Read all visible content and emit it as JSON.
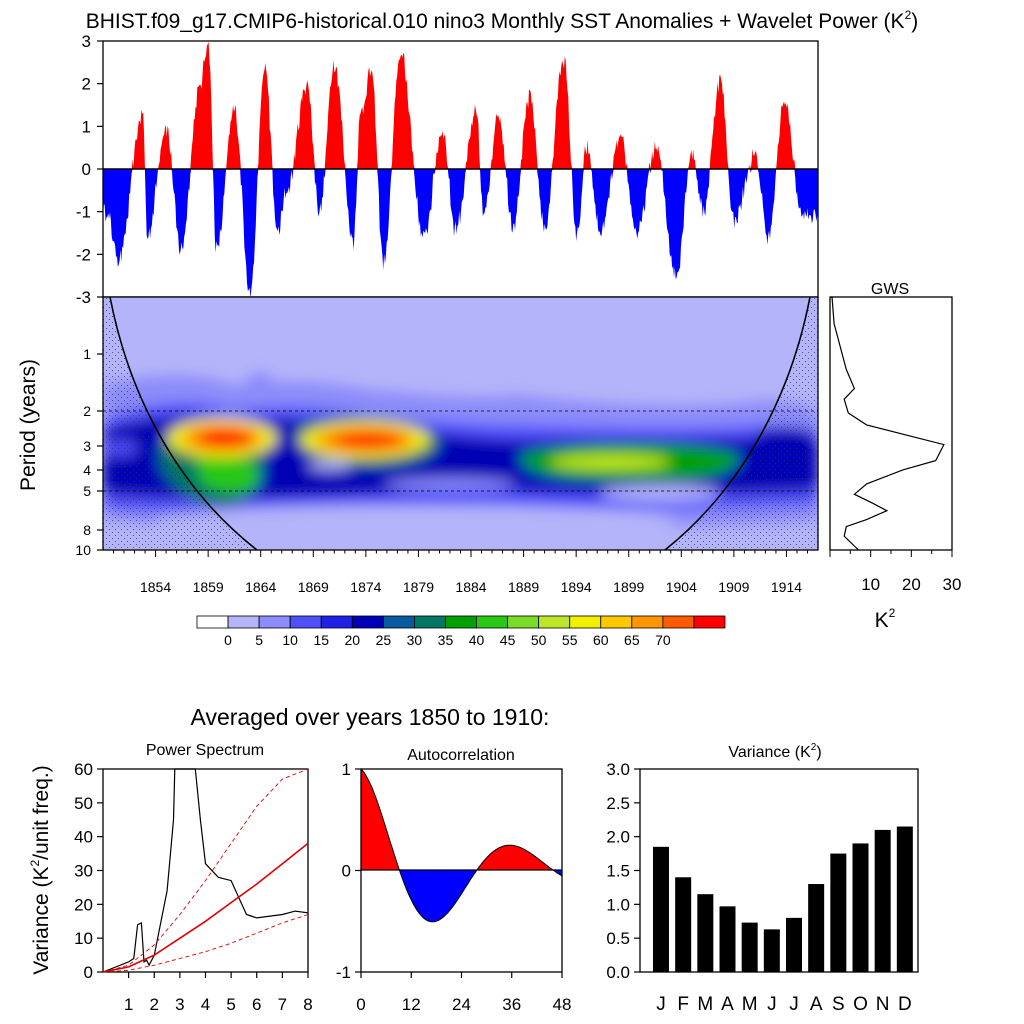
{
  "header": {
    "title": "BHIST.f09_g17.CMIP6-historical.010 nino3 Monthly SST Anomalies + Wavelet Power (K",
    "title_sup": "2",
    "title_end": ")"
  },
  "colors": {
    "positive": "#ff0000",
    "negative": "#0000ff",
    "coi_line": "#000000",
    "background": "#ffffff"
  },
  "chart_data": [
    {
      "id": "timeseries",
      "type": "area",
      "title": "Monthly SST Anomalies",
      "xlim": [
        1849,
        1917
      ],
      "ylim": [
        -3,
        3
      ],
      "yticks": [
        "3",
        "2",
        "1",
        "0",
        "-1",
        "-2",
        "-3"
      ],
      "peaks_x": [
        1849.3,
        1850.5,
        1852.8,
        1853.2,
        1855.0,
        1856.4,
        1858.2,
        1859.0,
        1859.8,
        1861.5,
        1863.0,
        1864.4,
        1865.6,
        1866.5,
        1868.4,
        1869.6,
        1871.0,
        1872.8,
        1873.5,
        1874.5,
        1875.7,
        1877.3,
        1879.5,
        1881.3,
        1882.5,
        1884.5,
        1885.2,
        1886.6,
        1888.0,
        1889.6,
        1891.0,
        1892.8,
        1894.1,
        1895.0,
        1896.3,
        1898.2,
        1899.8,
        1901.6,
        1903.5,
        1905.0,
        1906.1,
        1907.7,
        1909.0,
        1911.0,
        1912.3,
        1913.8,
        1915.5
      ],
      "peaks_y": [
        -1.0,
        -2.1,
        1.3,
        -1.6,
        1.0,
        -1.9,
        1.9,
        3.0,
        -1.9,
        1.4,
        -2.9,
        2.4,
        -1.5,
        -0.5,
        2.0,
        -1.0,
        2.5,
        -1.7,
        1.3,
        2.3,
        -2.2,
        2.7,
        -1.6,
        0.9,
        -1.4,
        1.3,
        -1.1,
        1.3,
        -1.3,
        1.7,
        -1.4,
        2.6,
        -1.6,
        0.5,
        -1.5,
        0.7,
        -1.5,
        0.5,
        -2.5,
        0.4,
        -1.0,
        2.1,
        -1.2,
        0.3,
        -1.6,
        1.6,
        -1.1
      ]
    },
    {
      "id": "wavelet",
      "type": "heatmap",
      "ylabel": "Period (years)",
      "xlim": [
        1849,
        1917
      ],
      "xticks": [
        "1854",
        "1859",
        "1864",
        "1869",
        "1874",
        "1879",
        "1884",
        "1889",
        "1894",
        "1899",
        "1904",
        "1909",
        "1914"
      ],
      "yticks": [
        "1",
        "2",
        "3",
        "4",
        "5",
        "8",
        "10"
      ],
      "hotspots": [
        {
          "year": 1859.5,
          "period": 2.9,
          "power": 72
        },
        {
          "year": 1875.0,
          "period": 2.9,
          "power": 72
        },
        {
          "year": 1898.0,
          "period": 4.1,
          "power": 45
        },
        {
          "year": 1863.5,
          "period": 4.8,
          "power": 35
        },
        {
          "year": 1911.5,
          "period": 2.9,
          "power": 15
        },
        {
          "year": 1868.0,
          "period": 2.5,
          "power": 25
        }
      ]
    },
    {
      "id": "colorbar",
      "type": "bar",
      "labels": [
        "0",
        "5",
        "10",
        "15",
        "20",
        "25",
        "30",
        "35",
        "40",
        "45",
        "50",
        "55",
        "60",
        "65",
        "70"
      ],
      "colors": [
        "#ffffff",
        "#b4b4fa",
        "#8c8cfa",
        "#5050fa",
        "#2020e6",
        "#0000b4",
        "#0a5aa0",
        "#007864",
        "#00a000",
        "#28c814",
        "#78dc28",
        "#bee628",
        "#f0f000",
        "#ffc800",
        "#ff9600",
        "#ff5a00",
        "#ff0000"
      ]
    },
    {
      "id": "gws",
      "type": "line",
      "title": "GWS",
      "xlabel": "K",
      "xlabel_sup": "2",
      "xlim": [
        0,
        30
      ],
      "xticks": [
        "10",
        "20",
        "30"
      ],
      "x": [
        0.2,
        0.5,
        1.0,
        4.0,
        6.0,
        3.5,
        4.5,
        9.0,
        19.0,
        28.0,
        26.0,
        18.0,
        9.0,
        6.0,
        10.0,
        14.0,
        9.0,
        4.0,
        3.5,
        7.0
      ],
      "y": [
        0.35,
        0.5,
        0.7,
        1.2,
        1.5,
        1.7,
        2.0,
        2.3,
        2.6,
        2.9,
        3.5,
        3.9,
        4.6,
        5.2,
        5.7,
        6.3,
        7.0,
        7.6,
        8.5,
        10.0
      ]
    },
    {
      "id": "power_spectrum",
      "type": "line",
      "title": "Power Spectrum",
      "header": "Averaged over years 1850 to 1910:",
      "ylabel": "Variance (K",
      "ylabel_sup": "2",
      "ylabel_end": "/unit freq.)",
      "xlim": [
        0,
        8
      ],
      "ylim": [
        0,
        60
      ],
      "xticks": [
        "1",
        "2",
        "3",
        "4",
        "5",
        "6",
        "7",
        "8"
      ],
      "yticks": [
        "0",
        "10",
        "20",
        "30",
        "40",
        "50",
        "60"
      ],
      "series": [
        {
          "x": [
            0,
            1.0,
            1.2,
            1.35,
            1.5,
            1.6,
            1.7,
            1.8,
            2.0,
            2.5,
            2.75,
            2.8,
            3.0,
            3.3,
            3.5,
            3.6,
            3.8,
            4.0,
            4.5,
            5.0,
            5.3,
            5.6,
            6.0,
            7.0,
            7.5,
            8.0
          ],
          "y": [
            0,
            3.0,
            4.0,
            14.0,
            14.5,
            3.0,
            3.5,
            2.0,
            5.0,
            24.0,
            45.0,
            60.0,
            60.0,
            60.0,
            60.0,
            60.0,
            45.0,
            32.0,
            28.0,
            27.0,
            22.0,
            17.0,
            16.0,
            17.0,
            18.0,
            17.5
          ]
        },
        {
          "x": [
            0,
            1,
            2,
            3,
            4,
            5,
            6,
            7,
            8
          ],
          "y": [
            0,
            1.5,
            5.0,
            10.0,
            15.0,
            20.5,
            26.0,
            32.0,
            38.0
          ]
        },
        {
          "x": [
            0,
            1,
            2,
            3,
            4,
            5,
            6,
            7,
            8
          ],
          "y": [
            0,
            2.0,
            8.0,
            17.0,
            27.0,
            38.0,
            49.0,
            57.0,
            62.0
          ]
        },
        {
          "x": [
            0,
            1,
            2,
            3,
            4,
            5,
            6,
            7,
            8
          ],
          "y": [
            0,
            0.5,
            2.0,
            4.0,
            6.0,
            8.5,
            11.5,
            14.5,
            17.0
          ]
        }
      ]
    },
    {
      "id": "autocorrelation",
      "type": "area",
      "title": "Autocorrelation",
      "xlim": [
        0,
        48
      ],
      "ylim": [
        -1,
        1
      ],
      "xticks": [
        "0",
        "12",
        "24",
        "36",
        "48"
      ],
      "yticks": [
        "1",
        "0",
        "-1"
      ]
    },
    {
      "id": "variance",
      "type": "bar",
      "title": "Variance (K",
      "title_sup": "2",
      "title_end": ")",
      "categories": [
        "J",
        "F",
        "M",
        "A",
        "M",
        "J",
        "J",
        "A",
        "S",
        "O",
        "N",
        "D"
      ],
      "values": [
        1.85,
        1.4,
        1.15,
        0.97,
        0.73,
        0.63,
        0.8,
        1.3,
        1.75,
        1.9,
        2.1,
        2.15
      ],
      "ylim": [
        0,
        3
      ],
      "yticks": [
        "3.0",
        "2.5",
        "2.0",
        "1.5",
        "1.0",
        "0.5",
        "0.0"
      ]
    }
  ]
}
